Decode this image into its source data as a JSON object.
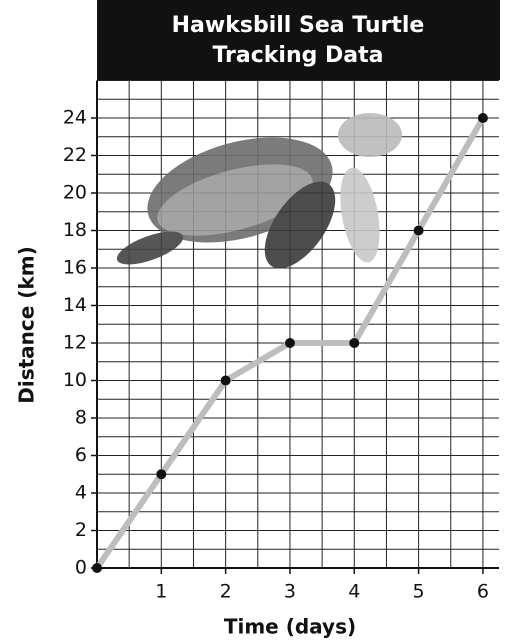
{
  "chart_data": {
    "type": "line",
    "title": [
      "Hawksbill Sea Turtle",
      "Tracking Data"
    ],
    "x_label": "Time (days)",
    "y_label": "Distance (km)",
    "x": [
      0,
      1,
      2,
      3,
      4,
      5,
      6
    ],
    "series": [
      {
        "color": "#bdbdbd",
        "values": [
          0,
          5,
          10,
          12,
          12,
          18,
          24
        ]
      }
    ],
    "xlim": [
      0,
      6.25
    ],
    "ylim": [
      0,
      26
    ],
    "xticks": [
      1,
      2,
      3,
      4,
      5,
      6
    ],
    "yticks": [
      0,
      2,
      4,
      6,
      8,
      10,
      12,
      14,
      16,
      18,
      20,
      22,
      24
    ],
    "grid": true
  }
}
